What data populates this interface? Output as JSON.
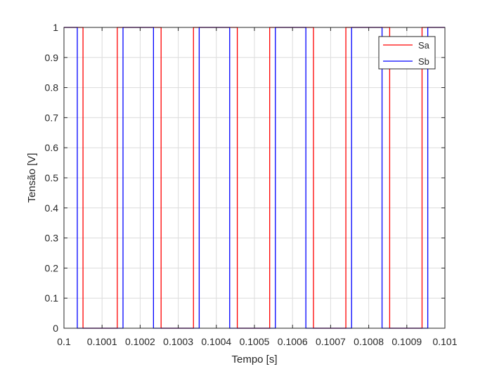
{
  "chart_data": {
    "type": "line",
    "step": true,
    "xlabel": "Tempo [s]",
    "ylabel": "Tensão [V]",
    "xlim": [
      0.1,
      0.101
    ],
    "ylim": [
      0,
      1
    ],
    "grid": true,
    "legend_position": "top-right",
    "x_ticks": [
      0.1,
      0.1001,
      0.1002,
      0.1003,
      0.1004,
      0.1005,
      0.1006,
      0.1007,
      0.1008,
      0.1009,
      0.101
    ],
    "x_tick_labels": [
      "0.1",
      "0.1001",
      "0.1002",
      "0.1003",
      "0.1004",
      "0.1005",
      "0.1006",
      "0.1007",
      "0.1008",
      "0.1009",
      "0.101"
    ],
    "y_ticks": [
      0,
      0.1,
      0.2,
      0.3,
      0.4,
      0.5,
      0.6,
      0.7,
      0.8,
      0.9,
      1
    ],
    "y_tick_labels": [
      "0",
      "0.1",
      "0.2",
      "0.3",
      "0.4",
      "0.5",
      "0.6",
      "0.7",
      "0.8",
      "0.9",
      "1"
    ],
    "series": [
      {
        "name": "Sa",
        "color": "#ff0000",
        "x": [
          0.1,
          0.10005,
          0.10005,
          0.10014,
          0.10014,
          0.100255,
          0.100255,
          0.10034,
          0.10034,
          0.100455,
          0.100455,
          0.10054,
          0.10054,
          0.100655,
          0.100655,
          0.10074,
          0.10074,
          0.100855,
          0.100855,
          0.10094,
          0.10094,
          0.101
        ],
        "y": [
          1,
          1,
          0,
          0,
          1,
          1,
          0,
          0,
          1,
          1,
          0,
          0,
          1,
          1,
          0,
          0,
          1,
          1,
          0,
          0,
          1,
          1
        ]
      },
      {
        "name": "Sb",
        "color": "#0000ff",
        "x": [
          0.1,
          0.100035,
          0.100035,
          0.100155,
          0.100155,
          0.100235,
          0.100235,
          0.100355,
          0.100355,
          0.100435,
          0.100435,
          0.100555,
          0.100555,
          0.100635,
          0.100635,
          0.100755,
          0.100755,
          0.100835,
          0.100835,
          0.100955,
          0.100955,
          0.101
        ],
        "y": [
          1,
          1,
          0,
          0,
          1,
          1,
          0,
          0,
          1,
          1,
          0,
          0,
          1,
          1,
          0,
          0,
          1,
          1,
          0,
          0,
          1,
          1
        ]
      }
    ]
  }
}
